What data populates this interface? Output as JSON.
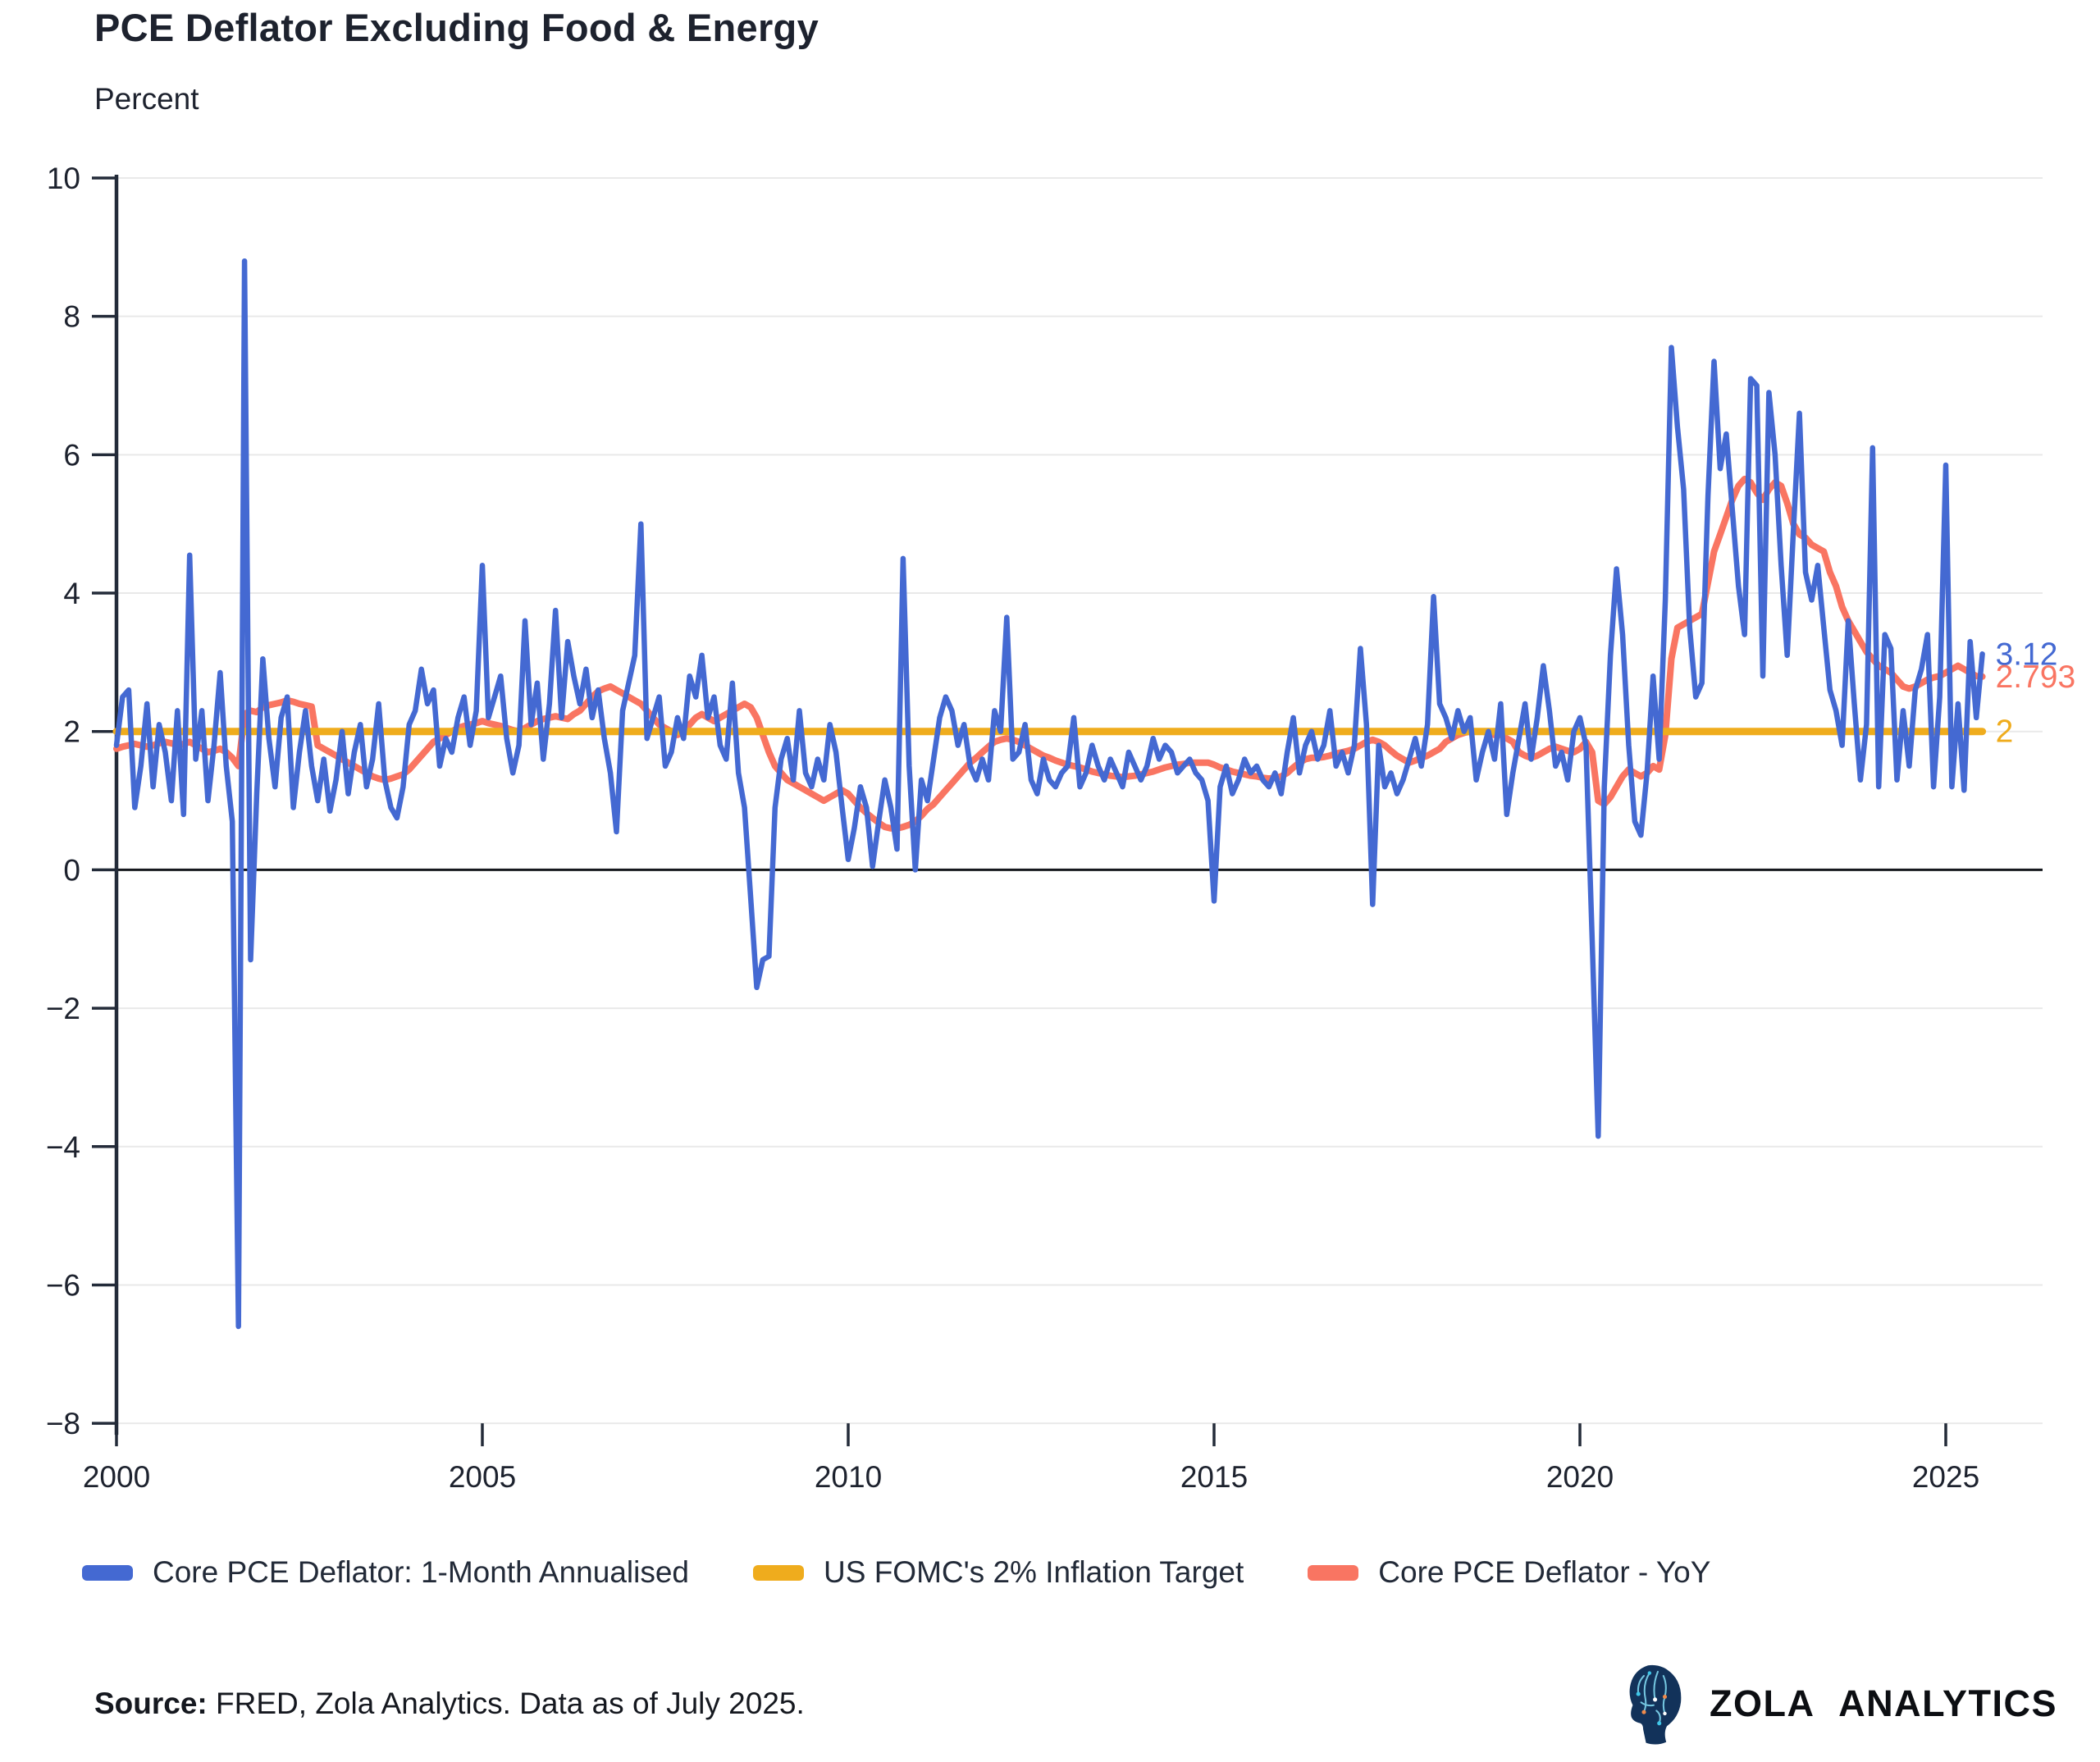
{
  "chart_data": {
    "type": "line",
    "title": "PCE Deflator Excluding Food & Energy",
    "ylabel": "Percent",
    "xlabel": "",
    "frequency": "monthly",
    "x_start": 2000,
    "x_end": 2025.5,
    "xlim": [
      2000,
      2026.1
    ],
    "ylim": [
      -8,
      10
    ],
    "grid": true,
    "legend_position": "bottom",
    "x_ticks": [
      2000,
      2005,
      2010,
      2015,
      2020,
      2025
    ],
    "y_ticks": [
      10,
      8,
      6,
      4,
      2,
      0,
      -2,
      -4,
      -6,
      -8
    ],
    "series": [
      {
        "name": "Core PCE Deflator: 1-Month Annualised",
        "color": "#4469d2",
        "end_label": "3.12",
        "end_value": 3.12,
        "z": 3,
        "values": [
          1.8,
          2.5,
          2.6,
          0.9,
          1.5,
          2.4,
          1.2,
          2.1,
          1.7,
          1.0,
          2.3,
          0.8,
          4.55,
          1.6,
          2.3,
          1.0,
          1.8,
          2.85,
          1.5,
          0.7,
          -6.6,
          8.8,
          -1.3,
          1.1,
          3.05,
          1.9,
          1.2,
          2.2,
          2.5,
          0.9,
          1.7,
          2.3,
          1.5,
          1.0,
          1.6,
          0.85,
          1.3,
          2.0,
          1.1,
          1.7,
          2.1,
          1.2,
          1.6,
          2.4,
          1.3,
          0.9,
          0.75,
          1.2,
          2.1,
          2.3,
          2.9,
          2.4,
          2.6,
          1.5,
          1.9,
          1.7,
          2.2,
          2.5,
          1.8,
          2.3,
          4.4,
          2.2,
          2.5,
          2.8,
          1.9,
          1.4,
          1.8,
          3.6,
          2.1,
          2.7,
          1.6,
          2.4,
          3.75,
          2.2,
          3.3,
          2.8,
          2.4,
          2.9,
          2.2,
          2.6,
          1.9,
          1.4,
          0.55,
          2.3,
          2.7,
          3.1,
          5.0,
          1.9,
          2.2,
          2.5,
          1.5,
          1.7,
          2.2,
          1.9,
          2.8,
          2.5,
          3.1,
          2.2,
          2.5,
          1.8,
          1.6,
          2.7,
          1.4,
          0.9,
          -0.4,
          -1.7,
          -1.3,
          -1.25,
          0.9,
          1.6,
          1.9,
          1.3,
          2.3,
          1.4,
          1.2,
          1.6,
          1.3,
          2.1,
          1.7,
          0.9,
          0.15,
          0.6,
          1.2,
          0.9,
          0.05,
          0.7,
          1.3,
          0.9,
          0.3,
          4.5,
          1.5,
          0.0,
          1.3,
          1.0,
          1.6,
          2.2,
          2.5,
          2.3,
          1.8,
          2.1,
          1.5,
          1.3,
          1.6,
          1.3,
          2.3,
          2.0,
          3.65,
          1.6,
          1.7,
          2.1,
          1.3,
          1.1,
          1.6,
          1.3,
          1.2,
          1.4,
          1.5,
          2.2,
          1.2,
          1.4,
          1.8,
          1.5,
          1.3,
          1.6,
          1.4,
          1.2,
          1.7,
          1.5,
          1.3,
          1.5,
          1.9,
          1.6,
          1.8,
          1.7,
          1.4,
          1.5,
          1.6,
          1.4,
          1.3,
          1.0,
          -0.45,
          1.2,
          1.5,
          1.1,
          1.3,
          1.6,
          1.4,
          1.5,
          1.3,
          1.2,
          1.4,
          1.1,
          1.7,
          2.2,
          1.4,
          1.8,
          2.0,
          1.6,
          1.8,
          2.3,
          1.5,
          1.7,
          1.4,
          1.8,
          3.2,
          2.1,
          -0.5,
          1.8,
          1.2,
          1.4,
          1.1,
          1.3,
          1.6,
          1.9,
          1.5,
          2.1,
          3.95,
          2.4,
          2.2,
          1.9,
          2.3,
          2.0,
          2.2,
          1.3,
          1.7,
          2.0,
          1.6,
          2.4,
          0.8,
          1.4,
          1.9,
          2.4,
          1.6,
          2.2,
          2.95,
          2.3,
          1.5,
          1.7,
          1.3,
          2.0,
          2.2,
          1.8,
          -1.0,
          -3.85,
          1.2,
          3.1,
          4.35,
          3.4,
          1.8,
          0.7,
          0.5,
          1.4,
          2.8,
          1.6,
          3.9,
          7.55,
          6.4,
          5.5,
          3.5,
          2.5,
          2.7,
          5.4,
          7.35,
          5.8,
          6.3,
          5.2,
          4.1,
          3.4,
          7.1,
          7.0,
          2.8,
          6.9,
          6.0,
          4.4,
          3.1,
          4.9,
          6.6,
          4.3,
          3.9,
          4.4,
          3.5,
          2.6,
          2.3,
          1.8,
          3.6,
          2.4,
          1.3,
          2.1,
          6.1,
          1.2,
          3.4,
          3.2,
          1.3,
          2.3,
          1.5,
          2.6,
          2.9,
          3.4,
          1.2,
          2.5,
          5.85,
          1.2,
          2.4,
          1.15,
          3.3,
          2.2,
          3.12
        ]
      },
      {
        "name": "US FOMC's 2% Inflation Target",
        "color": "#efac1d",
        "end_label": "2",
        "end_value": 2,
        "z": 2,
        "constant": 2
      },
      {
        "name": "Core PCE Deflator - YoY",
        "color": "#f97562",
        "end_label": "2.793",
        "end_value": 2.793,
        "z": 1,
        "values": [
          1.75,
          1.78,
          1.8,
          1.82,
          1.8,
          1.78,
          1.8,
          1.83,
          1.85,
          1.83,
          1.8,
          1.82,
          1.85,
          1.8,
          1.75,
          1.7,
          1.72,
          1.75,
          1.7,
          1.62,
          1.5,
          2.25,
          2.3,
          2.28,
          2.35,
          2.38,
          2.4,
          2.42,
          2.45,
          2.43,
          2.4,
          2.38,
          2.36,
          1.8,
          1.75,
          1.7,
          1.65,
          1.6,
          1.55,
          1.5,
          1.45,
          1.4,
          1.35,
          1.32,
          1.3,
          1.32,
          1.35,
          1.38,
          1.45,
          1.55,
          1.65,
          1.75,
          1.85,
          1.9,
          1.95,
          2.0,
          2.05,
          2.08,
          2.1,
          2.12,
          2.15,
          2.12,
          2.1,
          2.08,
          2.05,
          2.02,
          2.0,
          2.05,
          2.1,
          2.15,
          2.18,
          2.2,
          2.22,
          2.2,
          2.18,
          2.25,
          2.3,
          2.4,
          2.5,
          2.58,
          2.62,
          2.65,
          2.6,
          2.55,
          2.5,
          2.45,
          2.4,
          2.3,
          2.2,
          2.1,
          2.05,
          2.0,
          1.95,
          2.0,
          2.1,
          2.2,
          2.25,
          2.2,
          2.15,
          2.2,
          2.25,
          2.3,
          2.35,
          2.4,
          2.35,
          2.2,
          1.95,
          1.7,
          1.5,
          1.4,
          1.3,
          1.25,
          1.2,
          1.15,
          1.1,
          1.05,
          1.0,
          1.05,
          1.1,
          1.15,
          1.1,
          1.0,
          0.9,
          0.82,
          0.75,
          0.68,
          0.62,
          0.6,
          0.6,
          0.62,
          0.65,
          0.7,
          0.78,
          0.88,
          0.95,
          1.05,
          1.15,
          1.25,
          1.35,
          1.45,
          1.55,
          1.62,
          1.7,
          1.78,
          1.85,
          1.88,
          1.9,
          1.88,
          1.85,
          1.8,
          1.75,
          1.7,
          1.65,
          1.62,
          1.58,
          1.55,
          1.52,
          1.5,
          1.48,
          1.45,
          1.42,
          1.4,
          1.38,
          1.36,
          1.35,
          1.34,
          1.35,
          1.36,
          1.38,
          1.4,
          1.42,
          1.45,
          1.48,
          1.5,
          1.52,
          1.53,
          1.55,
          1.55,
          1.55,
          1.55,
          1.52,
          1.48,
          1.45,
          1.42,
          1.4,
          1.38,
          1.36,
          1.35,
          1.33,
          1.32,
          1.33,
          1.35,
          1.4,
          1.48,
          1.55,
          1.6,
          1.62,
          1.62,
          1.63,
          1.65,
          1.68,
          1.7,
          1.72,
          1.75,
          1.8,
          1.85,
          1.88,
          1.85,
          1.8,
          1.72,
          1.65,
          1.6,
          1.55,
          1.58,
          1.62,
          1.65,
          1.7,
          1.75,
          1.85,
          1.9,
          1.95,
          1.98,
          2.0,
          2.0,
          2.0,
          1.98,
          1.95,
          1.95,
          1.9,
          1.85,
          1.7,
          1.65,
          1.62,
          1.65,
          1.7,
          1.75,
          1.78,
          1.75,
          1.72,
          1.7,
          1.75,
          1.85,
          1.7,
          1.0,
          0.95,
          1.05,
          1.2,
          1.35,
          1.45,
          1.4,
          1.35,
          1.4,
          1.5,
          1.45,
          1.95,
          3.05,
          3.5,
          3.55,
          3.6,
          3.65,
          3.7,
          4.15,
          4.6,
          4.85,
          5.1,
          5.35,
          5.55,
          5.65,
          5.6,
          5.45,
          5.35,
          5.5,
          5.6,
          5.55,
          5.3,
          5.0,
          4.85,
          4.8,
          4.7,
          4.65,
          4.6,
          4.3,
          4.1,
          3.8,
          3.6,
          3.45,
          3.3,
          3.15,
          3.05,
          2.95,
          2.9,
          2.85,
          2.75,
          2.65,
          2.62,
          2.65,
          2.7,
          2.75,
          2.78,
          2.8,
          2.85,
          2.9,
          2.95,
          2.9,
          2.85,
          2.8,
          2.793
        ]
      }
    ]
  },
  "source": {
    "label": "Source:",
    "text": " FRED, Zola Analytics. Data as of July 2025."
  },
  "logo": {
    "text": "ZOLA ANALYTICS"
  }
}
